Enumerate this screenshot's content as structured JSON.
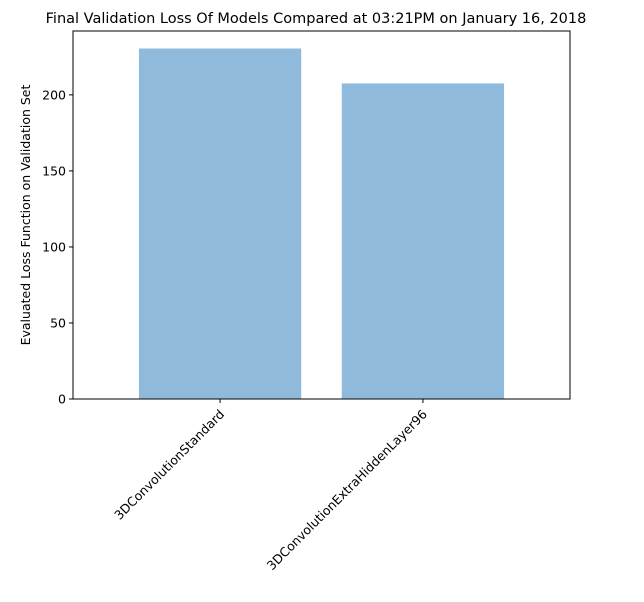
{
  "chart_data": {
    "type": "bar",
    "title": "Final Validation Loss Of Models Compared at 03:21PM on January 16, 2018",
    "xlabel": "",
    "ylabel": "Evaluated Loss Function on Validation Set",
    "categories": [
      "3DConvolutionStandard",
      "3DConvolutionExtraHiddenLayer96"
    ],
    "values": [
      230.5,
      207.5
    ],
    "ylim": [
      0,
      242
    ],
    "yticks": [
      0,
      50,
      100,
      150,
      200
    ],
    "bar_color": "#8fbadb",
    "grid": false,
    "legend": "none",
    "xtick_rotation": 45
  }
}
